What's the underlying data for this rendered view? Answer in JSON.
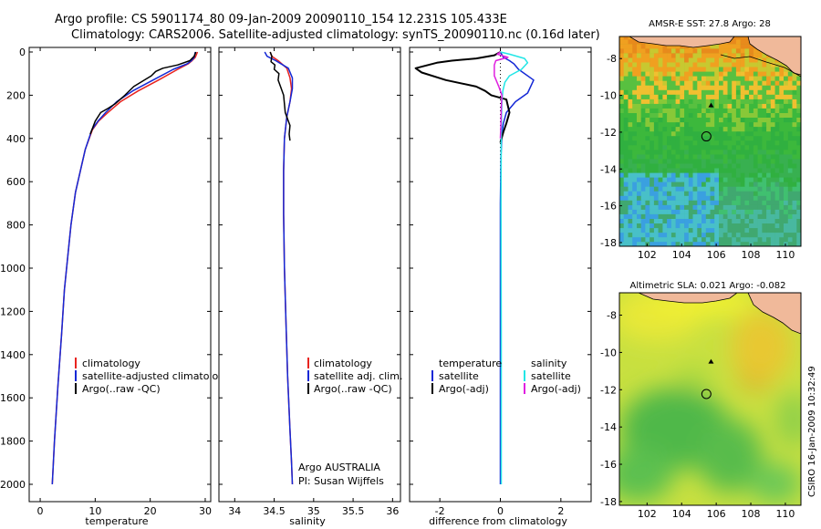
{
  "header": {
    "title_line1": "Argo profile: CS 5901174_80 09-Jan-2009 20090110_154 12.231S 105.433E",
    "title_line2": "Climatology: CARS2006. Satellite-adjusted climatology: synTS_20090110.nc (0.16d later)"
  },
  "footer": {
    "stamp": "CSIRO 16-Jan-2009 10:32:49"
  },
  "colors": {
    "climatology": "#e8231f",
    "satellite": "#1428d6",
    "argo": "#000000",
    "sat_salinity": "#22e6e6",
    "argo_salinity": "#e020e0",
    "land": "#f0b99a"
  },
  "chart_data": [
    {
      "id": "temperature",
      "type": "line",
      "xlabel": "temperature",
      "ylabel": "",
      "xlim": [
        -2,
        31
      ],
      "ylim": [
        2080,
        0
      ],
      "xticks": [
        0,
        10,
        20,
        30
      ],
      "xtick_labels": [
        "0",
        "10",
        "20",
        "30"
      ],
      "yticks": [
        0,
        200,
        400,
        600,
        800,
        1000,
        1200,
        1400,
        1600,
        1800,
        2000
      ],
      "ytick_labels": [
        "0",
        "200",
        "400",
        "600",
        "800",
        "1000",
        "1200",
        "1400",
        "1600",
        "1800",
        "2000"
      ],
      "legend": {
        "position": "lower-right",
        "labels": [
          "climatology",
          "satellite-adjusted climatology",
          "Argo(..raw -QC)"
        ]
      },
      "series": [
        {
          "name": "climatology",
          "color": "#e8231f",
          "width": 1.5,
          "x": [
            28.6,
            28.2,
            27.6,
            26.9,
            25.0,
            21.5,
            17.8,
            14.6,
            12.3,
            10.6,
            9.5,
            8.2,
            7.3,
            6.4,
            5.6,
            5.0,
            4.4,
            3.9,
            3.2,
            2.6,
            2.2
          ],
          "depth": [
            0,
            25,
            40,
            55,
            80,
            130,
            180,
            230,
            280,
            320,
            360,
            450,
            550,
            650,
            800,
            950,
            1100,
            1300,
            1550,
            1800,
            2000
          ]
        },
        {
          "name": "satellite-adjusted climatology",
          "color": "#1428d6",
          "width": 1.5,
          "x": [
            28.2,
            28.0,
            27.5,
            26.7,
            24.2,
            20.5,
            16.8,
            13.9,
            11.9,
            10.5,
            9.4,
            8.2,
            7.3,
            6.4,
            5.6,
            5.0,
            4.4,
            3.9,
            3.2,
            2.6,
            2.2
          ],
          "depth": [
            0,
            25,
            40,
            55,
            80,
            130,
            180,
            230,
            280,
            320,
            360,
            450,
            550,
            650,
            800,
            950,
            1100,
            1300,
            1550,
            1800,
            2000
          ]
        },
        {
          "name": "Argo(..raw -QC)",
          "color": "#000000",
          "width": 1.5,
          "x": [
            28.3,
            28.0,
            27.2,
            25.0,
            22.3,
            21.0,
            20.2,
            17.0,
            15.4,
            13.6,
            12.4,
            11.0,
            10.0,
            9.1
          ],
          "depth": [
            0,
            20,
            40,
            60,
            75,
            90,
            110,
            160,
            200,
            240,
            260,
            280,
            320,
            380
          ]
        }
      ]
    },
    {
      "id": "salinity",
      "type": "line",
      "xlabel": "salinity",
      "ylabel": "",
      "xlim": [
        33.8,
        36.1
      ],
      "ylim": [
        2080,
        0
      ],
      "xticks": [
        34,
        34.5,
        35,
        35.5,
        36
      ],
      "xtick_labels": [
        "34",
        "34.5",
        "35",
        "35.5",
        "36"
      ],
      "legend": {
        "position": "lower-right",
        "labels": [
          "climatology",
          "satellite adj. clim.",
          "Argo(..raw -QC)"
        ]
      },
      "annotation": [
        "Argo AUSTRALIA",
        "PI: Susan Wijffels"
      ],
      "series": [
        {
          "name": "climatology",
          "color": "#e8231f",
          "width": 1.5,
          "x": [
            34.45,
            34.47,
            34.55,
            34.66,
            34.7,
            34.72,
            34.7,
            34.66,
            34.63,
            34.62,
            34.62,
            34.63,
            34.65,
            34.67,
            34.7,
            34.72,
            34.73
          ],
          "depth": [
            0,
            20,
            40,
            75,
            120,
            170,
            230,
            300,
            400,
            550,
            750,
            1000,
            1250,
            1500,
            1750,
            1900,
            2000
          ]
        },
        {
          "name": "satellite adj. clim.",
          "color": "#1428d6",
          "width": 1.5,
          "x": [
            34.38,
            34.41,
            34.52,
            34.68,
            34.73,
            34.73,
            34.7,
            34.66,
            34.63,
            34.62,
            34.62,
            34.63,
            34.65,
            34.67,
            34.7,
            34.72,
            34.73
          ],
          "depth": [
            0,
            20,
            40,
            75,
            120,
            170,
            230,
            300,
            400,
            550,
            750,
            1000,
            1250,
            1500,
            1750,
            1900,
            2000
          ]
        },
        {
          "name": "Argo(..raw -QC)",
          "color": "#000000",
          "width": 1.5,
          "x": [
            34.45,
            34.47,
            34.46,
            34.51,
            34.5,
            34.56,
            34.55,
            34.58,
            34.62,
            34.63,
            34.64,
            34.66,
            34.7,
            34.69,
            34.7
          ],
          "depth": [
            0,
            20,
            45,
            60,
            80,
            100,
            130,
            160,
            200,
            240,
            280,
            300,
            340,
            380,
            410
          ]
        }
      ]
    },
    {
      "id": "difference",
      "type": "line",
      "xlabel": "difference from climatology",
      "ylabel": "",
      "xlim": [
        -3.0,
        3.0
      ],
      "ylim": [
        2080,
        0
      ],
      "xticks": [
        -2,
        0,
        2
      ],
      "xtick_labels": [
        "-2",
        "0",
        "2"
      ],
      "legend": {
        "position": "lower-center",
        "temperature_header": "temperature",
        "salinity_header": "salinity",
        "labels": [
          "satellite",
          "Argo(-adj)",
          "satellite",
          "Argo(-adj)"
        ]
      },
      "series": [
        {
          "name": "temperature satellite",
          "color": "#1428d6",
          "width": 1.5,
          "x": [
            0.0,
            0.1,
            0.3,
            0.45,
            0.6,
            1.1,
            0.9,
            0.5,
            0.2,
            0.1,
            0.05,
            0.02,
            0.0,
            0.0,
            0.0
          ],
          "depth": [
            0,
            25,
            40,
            55,
            80,
            130,
            190,
            230,
            280,
            330,
            380,
            480,
            700,
            1300,
            2000
          ]
        },
        {
          "name": "temperature Argo(-adj)",
          "color": "#000000",
          "width": 2,
          "x": [
            0.0,
            -0.2,
            -0.8,
            -1.6,
            -2.1,
            -2.8,
            -2.6,
            -1.8,
            -0.8,
            -0.5,
            -0.3,
            0.2,
            0.3,
            0.2,
            0.1,
            0.0
          ],
          "depth": [
            0,
            15,
            30,
            40,
            50,
            75,
            95,
            130,
            160,
            180,
            200,
            220,
            280,
            330,
            370,
            420
          ]
        },
        {
          "name": "salinity satellite",
          "color": "#22e6e6",
          "width": 1.5,
          "x": [
            0.0,
            0.3,
            0.8,
            0.9,
            0.7,
            0.3,
            0.15,
            0.08,
            0.05,
            0.04,
            0.03,
            0.02,
            0.03,
            0.03
          ],
          "depth": [
            0,
            10,
            30,
            50,
            80,
            110,
            140,
            180,
            230,
            300,
            400,
            700,
            1300,
            2000
          ]
        },
        {
          "name": "salinity Argo(-adj)",
          "color": "#e020e0",
          "width": 1.5,
          "x": [
            0.0,
            -0.1,
            0.25,
            -0.15,
            -0.2,
            -0.2,
            -0.05,
            0.05,
            0.03,
            0.02,
            0.0
          ],
          "depth": [
            0,
            10,
            25,
            40,
            60,
            110,
            160,
            200,
            260,
            330,
            400
          ]
        }
      ]
    },
    {
      "id": "sst_map",
      "type": "heatmap",
      "title": "AMSR-E SST: 27.8 Argo: 28",
      "xlim": [
        100.4,
        110.9
      ],
      "ylim": [
        -18.2,
        -6.8
      ],
      "xticks": [
        102,
        104,
        106,
        108,
        110
      ],
      "xtick_labels": [
        "102",
        "104",
        "106",
        "108",
        "110"
      ],
      "yticks": [
        -8,
        -10,
        -12,
        -14,
        -16,
        -18
      ],
      "ytick_labels": [
        "-8",
        "-10",
        "-12",
        "-14",
        "-16",
        "-18"
      ],
      "argo_position": [
        105.43,
        -12.23
      ],
      "float_marker": [
        105.7,
        -10.55
      ]
    },
    {
      "id": "sla_map",
      "type": "heatmap",
      "title": "Altimetric SLA: 0.021 Argo: -0.082",
      "xlim": [
        100.4,
        110.9
      ],
      "ylim": [
        -18.2,
        -6.8
      ],
      "xticks": [
        102,
        104,
        106,
        108,
        110
      ],
      "xtick_labels": [
        "102",
        "104",
        "106",
        "108",
        "110"
      ],
      "yticks": [
        -8,
        -10,
        -12,
        -14,
        -16,
        -18
      ],
      "ytick_labels": [
        "-8",
        "-10",
        "-12",
        "-14",
        "-16",
        "-18"
      ],
      "argo_position": [
        105.43,
        -12.23
      ],
      "float_marker": [
        105.7,
        -10.5
      ]
    }
  ]
}
